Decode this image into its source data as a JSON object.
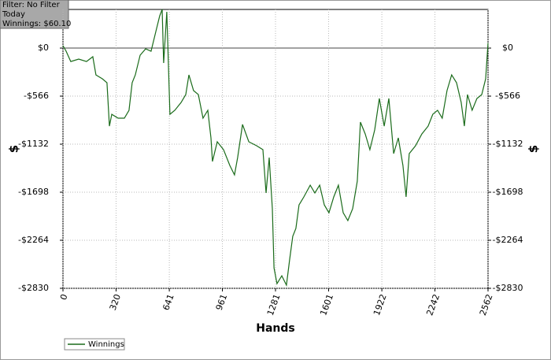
{
  "chart_data": {
    "type": "line",
    "info": [
      "Filter: No Filter",
      "Today",
      "Winnings: $60.10"
    ],
    "xlabel": "Hands",
    "ylabel": "$",
    "xlim": [
      0,
      2562
    ],
    "xticks": [
      0,
      320,
      641,
      961,
      1281,
      1601,
      1922,
      2242,
      2562
    ],
    "ylim": [
      -2830,
      455
    ],
    "yticks": [
      {
        "value": 0,
        "label": "$0"
      },
      {
        "value": -566,
        "label": "-$566"
      },
      {
        "value": -1132,
        "label": "-$1132"
      },
      {
        "value": -1698,
        "label": "-$1698"
      },
      {
        "value": -2264,
        "label": "-$2264"
      },
      {
        "value": -2830,
        "label": "-$2830"
      }
    ],
    "grid": true,
    "series": [
      {
        "name": "Winnings",
        "color": "#1a6b1a",
        "x": [
          0,
          19,
          47,
          95,
          142,
          180,
          199,
          237,
          265,
          280,
          294,
          332,
          370,
          398,
          417,
          436,
          465,
          498,
          531,
          560,
          583,
          598,
          607,
          626,
          645,
          674,
          712,
          740,
          759,
          787,
          816,
          844,
          873,
          892,
          901,
          930,
          968,
          1006,
          1034,
          1053,
          1082,
          1120,
          1167,
          1205,
          1224,
          1243,
          1262,
          1272,
          1290,
          1319,
          1347,
          1366,
          1385,
          1404,
          1423,
          1452,
          1490,
          1518,
          1547,
          1575,
          1603,
          1632,
          1660,
          1689,
          1717,
          1746,
          1774,
          1793,
          1822,
          1850,
          1879,
          1907,
          1936,
          1964,
          1993,
          2021,
          2049,
          2068,
          2087,
          2125,
          2163,
          2201,
          2229,
          2258,
          2286,
          2315,
          2343,
          2372,
          2400,
          2419,
          2438,
          2466,
          2495,
          2524,
          2548,
          2562
        ],
        "values": [
          28,
          -37,
          -158,
          -130,
          -158,
          -102,
          -316,
          -362,
          -408,
          -919,
          -780,
          -826,
          -826,
          -733,
          -408,
          -316,
          -84,
          -9,
          -37,
          195,
          380,
          455,
          -176,
          427,
          -780,
          -733,
          -640,
          -548,
          -316,
          -501,
          -548,
          -826,
          -733,
          -1058,
          -1336,
          -1104,
          -1197,
          -1383,
          -1494,
          -1290,
          -900,
          -1104,
          -1150,
          -1197,
          -1707,
          -1290,
          -1893,
          -2589,
          -2775,
          -2682,
          -2793,
          -2496,
          -2218,
          -2125,
          -1847,
          -1754,
          -1615,
          -1707,
          -1615,
          -1847,
          -1940,
          -1754,
          -1615,
          -1940,
          -2032,
          -1893,
          -1568,
          -872,
          -1012,
          -1197,
          -965,
          -594,
          -919,
          -594,
          -1243,
          -1058,
          -1383,
          -1754,
          -1243,
          -1150,
          -1012,
          -919,
          -780,
          -733,
          -826,
          -501,
          -316,
          -408,
          -640,
          -919,
          -548,
          -733,
          -594,
          -548,
          -362,
          60.1
        ]
      }
    ]
  }
}
